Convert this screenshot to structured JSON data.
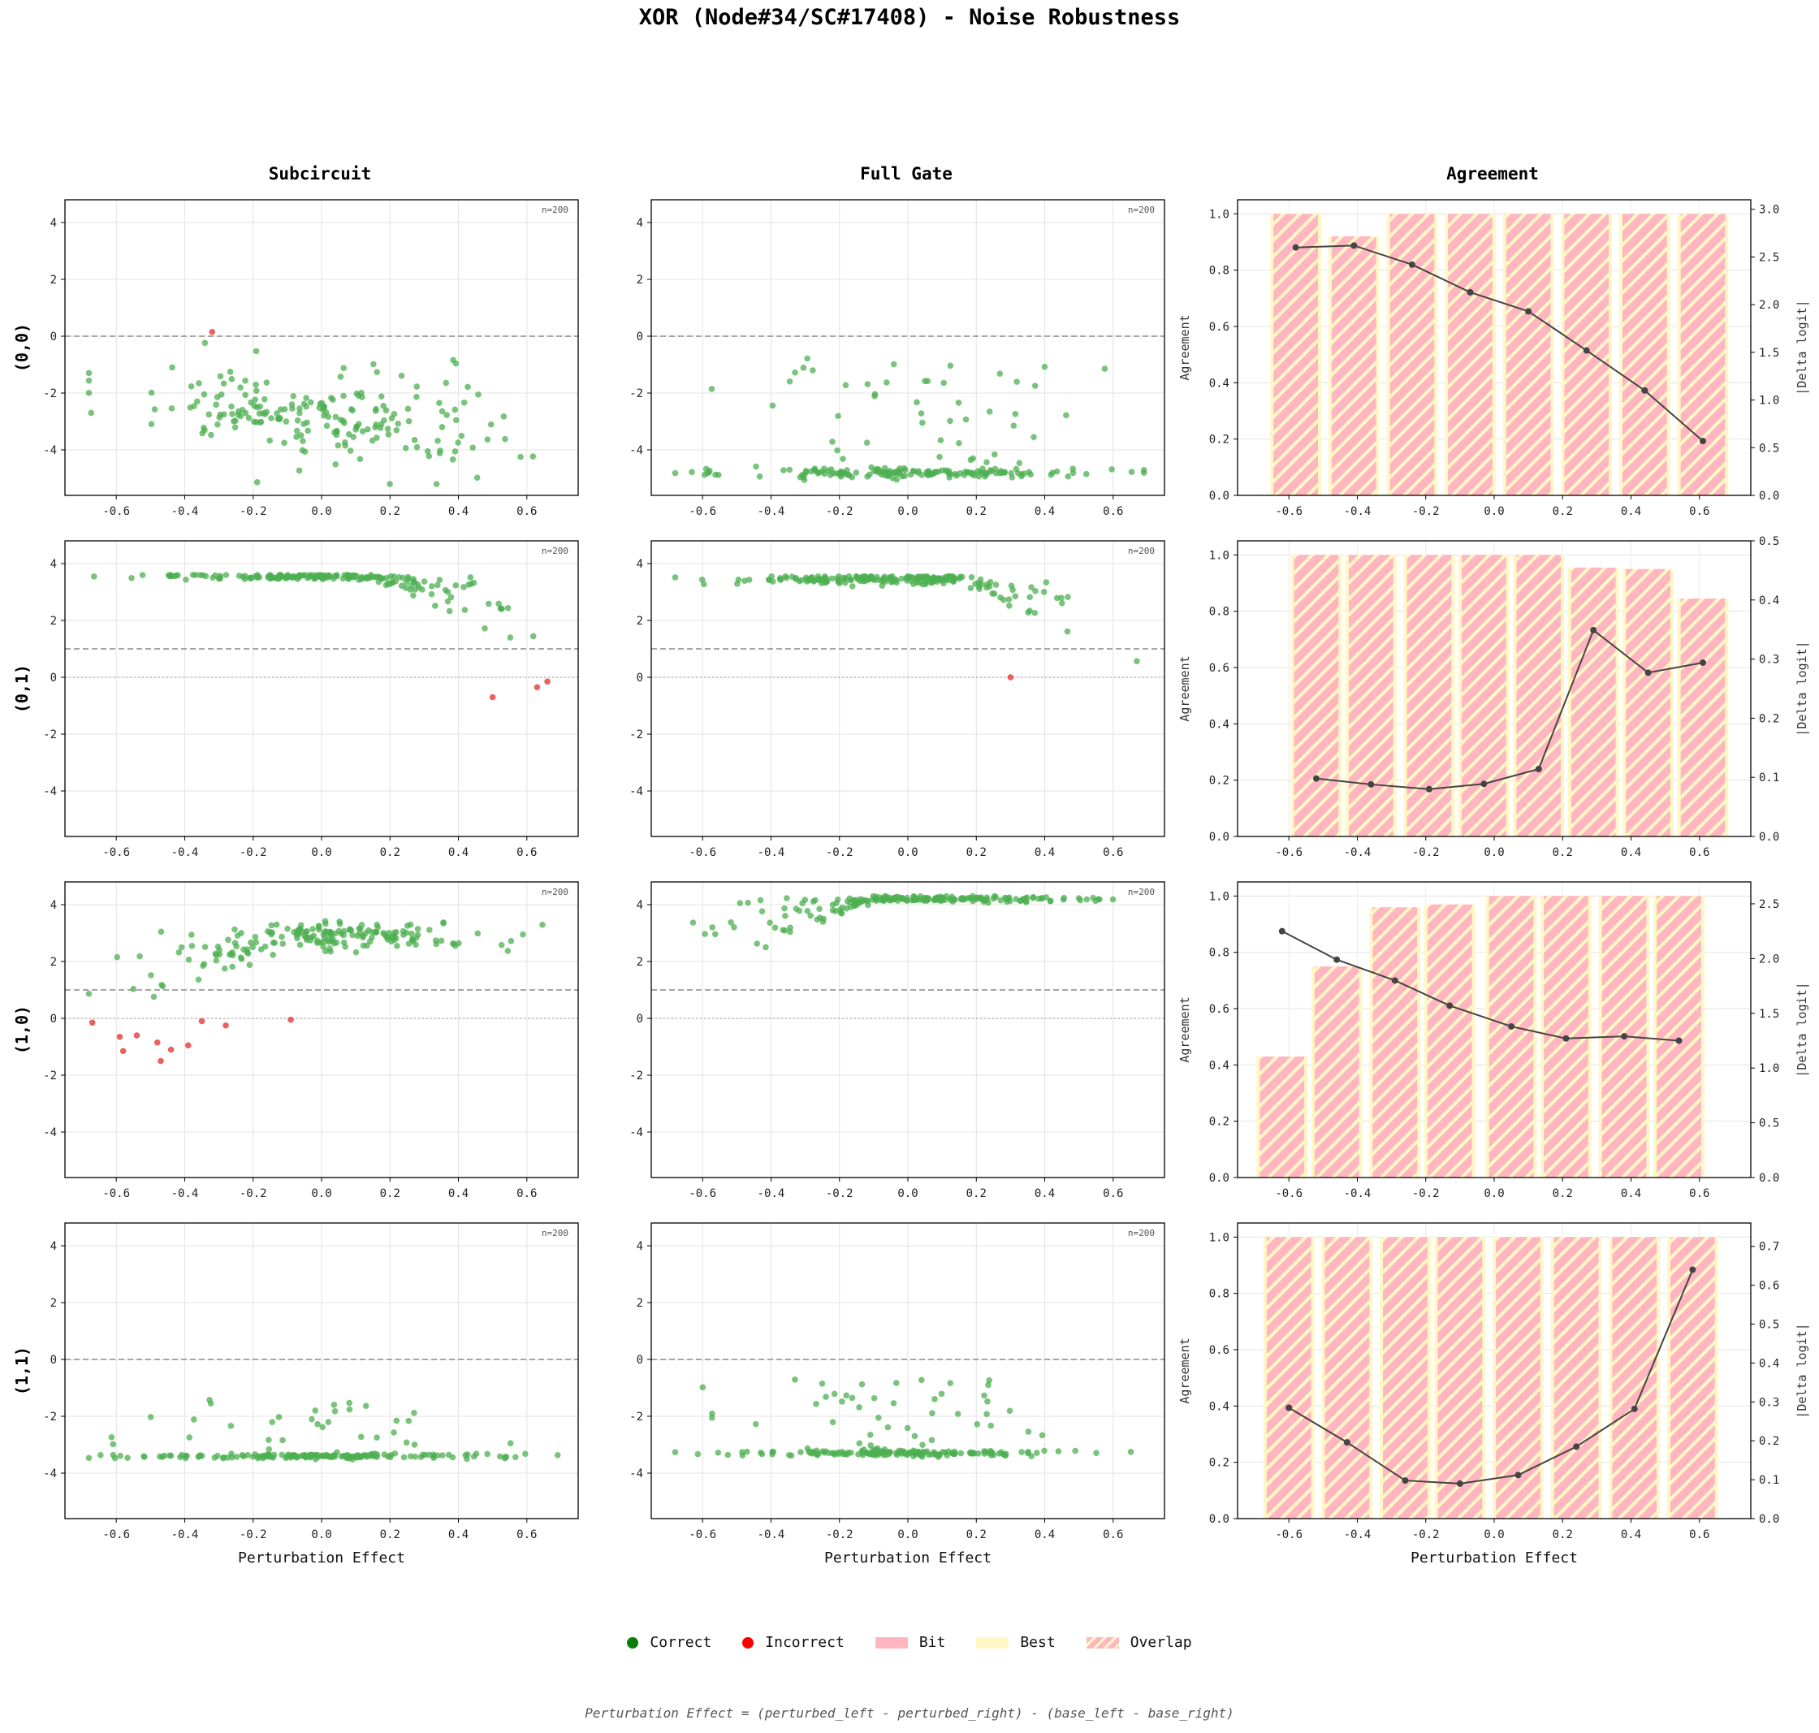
{
  "title": "XOR (Node#34/SC#17408) - Noise Robustness",
  "column_titles": [
    "Subcircuit",
    "Full Gate",
    "Agreement"
  ],
  "row_labels": [
    "(0,0)",
    "(0,1)",
    "(1,0)",
    "(1,1)"
  ],
  "xlabel": "Perturbation Effect",
  "agreement_ylabel": "Agreement",
  "delta_ylabel": "|Delta logit|",
  "legend": {
    "correct": "Correct",
    "incorrect": "Incorrect",
    "bit": "Bit",
    "best": "Best",
    "overlap": "Overlap"
  },
  "footnote": "Perturbation Effect = (perturbed_left - perturbed_right) - (base_left - base_right)",
  "colors": {
    "correct": "#4caf50",
    "incorrect": "#e53935",
    "bit": "#ffb6c1",
    "best": "#fff8c6",
    "line": "#444444",
    "legend_correct": "#0a7d0a",
    "legend_incorrect": "#ff0000"
  },
  "chart_data": {
    "type": "scatter",
    "scatter_xlim": [
      -0.75,
      0.75
    ],
    "scatter_ylim": [
      -5.6,
      4.8
    ],
    "scatter_xticks": [
      -0.6,
      -0.4,
      -0.2,
      0.0,
      0.2,
      0.4,
      0.6
    ],
    "scatter_yticks": [
      4,
      2,
      0,
      -2,
      -4
    ],
    "scatter_n_label": "n=200",
    "agreement_ylim": [
      0,
      1.05
    ],
    "agreement_yticks": [
      0.0,
      0.2,
      0.4,
      0.6,
      0.8,
      1.0
    ],
    "rows": [
      {
        "label": "(0,0)",
        "scatter_reference_lines": [
          0
        ],
        "subcircuit": {
          "n": 200,
          "center": -2.8,
          "spread": 0.8,
          "trend": -2.0,
          "floor": null,
          "ceil": null,
          "sat_frac": 0.0,
          "incorrect": [
            [
              -0.32,
              0.15
            ]
          ]
        },
        "full_gate": {
          "n": 200,
          "center": -4.8,
          "spread": 0.08,
          "trend": 0.0,
          "floor": null,
          "ceil": null,
          "sat_frac": 0.0,
          "outlier_frac": 0.3,
          "outlier_range": [
            -5.1,
            -0.6
          ],
          "incorrect": []
        },
        "agreement": {
          "x": [
            -0.58,
            -0.41,
            -0.24,
            -0.07,
            0.1,
            0.27,
            0.44,
            0.61
          ],
          "bar_width": 0.13,
          "values": [
            1.0,
            0.92,
            1.0,
            1.0,
            1.0,
            1.0,
            1.0,
            1.0
          ],
          "delta_logit": [
            2.6,
            2.62,
            2.42,
            2.13,
            1.93,
            1.52,
            1.1,
            0.57
          ],
          "delta_ylim": [
            0,
            3.1
          ],
          "delta_yticks": [
            0.0,
            0.5,
            1.0,
            1.5,
            2.0,
            2.5,
            3.0
          ]
        }
      },
      {
        "label": "(0,1)",
        "scatter_reference_lines": [
          1,
          0
        ],
        "subcircuit": {
          "n": 200,
          "center": 3.55,
          "spread": 0.05,
          "trend": 0.0,
          "floor": null,
          "ceil": 3.6,
          "sat_frac": 0.0,
          "tail": true,
          "incorrect": [
            [
              0.5,
              -0.7
            ],
            [
              0.63,
              -0.35
            ],
            [
              0.66,
              -0.15
            ]
          ]
        },
        "full_gate": {
          "n": 200,
          "center": 3.45,
          "spread": 0.08,
          "trend": 0.0,
          "floor": null,
          "ceil": 3.55,
          "sat_frac": 0.0,
          "tail": true,
          "incorrect": [
            [
              0.3,
              0.0
            ]
          ]
        },
        "agreement": {
          "x": [
            -0.52,
            -0.36,
            -0.19,
            -0.03,
            0.13,
            0.29,
            0.45,
            0.61
          ],
          "bar_width": 0.13,
          "values": [
            1.0,
            1.0,
            1.0,
            1.0,
            1.0,
            0.955,
            0.95,
            0.845
          ],
          "delta_logit": [
            0.098,
            0.088,
            0.08,
            0.089,
            0.114,
            0.349,
            0.277,
            0.294
          ],
          "delta_ylim": [
            0,
            0.5
          ],
          "delta_yticks": [
            0.0,
            0.1,
            0.2,
            0.3,
            0.4,
            0.5
          ]
        }
      },
      {
        "label": "(1,0)",
        "scatter_reference_lines": [
          1,
          0
        ],
        "subcircuit": {
          "n": 200,
          "center": 2.9,
          "spread": 0.25,
          "trend": 0.0,
          "floor": null,
          "ceil": null,
          "sat_frac": 0.0,
          "rise": true,
          "incorrect": [
            [
              -0.67,
              -0.15
            ],
            [
              -0.59,
              -0.65
            ],
            [
              -0.58,
              -1.15
            ],
            [
              -0.54,
              -0.6
            ],
            [
              -0.48,
              -0.85
            ],
            [
              -0.47,
              -1.5
            ],
            [
              -0.44,
              -1.1
            ],
            [
              -0.39,
              -0.95
            ],
            [
              -0.35,
              -0.1
            ],
            [
              -0.28,
              -0.25
            ],
            [
              -0.09,
              -0.05
            ]
          ]
        },
        "full_gate": {
          "n": 200,
          "center": 4.2,
          "spread": 0.05,
          "trend": 0.0,
          "floor": null,
          "ceil": 4.3,
          "sat_frac": 0.0,
          "rise": true,
          "incorrect": []
        },
        "agreement": {
          "x": [
            -0.62,
            -0.46,
            -0.29,
            -0.13,
            0.05,
            0.21,
            0.38,
            0.54
          ],
          "bar_width": 0.13,
          "values": [
            0.43,
            0.75,
            0.96,
            0.97,
            1.0,
            1.0,
            1.0,
            1.0
          ],
          "delta_logit": [
            2.25,
            1.99,
            1.8,
            1.57,
            1.38,
            1.27,
            1.29,
            1.25
          ],
          "delta_ylim": [
            0,
            2.7
          ],
          "delta_yticks": [
            0.0,
            0.5,
            1.0,
            1.5,
            2.0,
            2.5
          ]
        }
      },
      {
        "label": "(1,1)",
        "scatter_reference_lines": [
          0
        ],
        "subcircuit": {
          "n": 200,
          "center": -3.4,
          "spread": 0.04,
          "trend": 0.0,
          "floor": null,
          "ceil": null,
          "sat_frac": 0.0,
          "outlier_frac": 0.2,
          "outlier_range": [
            -3.4,
            -1.4
          ],
          "incorrect": []
        },
        "full_gate": {
          "n": 200,
          "center": -3.3,
          "spread": 0.05,
          "trend": 0.0,
          "floor": null,
          "ceil": null,
          "sat_frac": 0.0,
          "outlier_frac": 0.25,
          "outlier_range": [
            -3.3,
            -0.7
          ],
          "incorrect": []
        },
        "agreement": {
          "x": [
            -0.6,
            -0.43,
            -0.26,
            -0.1,
            0.07,
            0.24,
            0.41,
            0.58
          ],
          "bar_width": 0.13,
          "values": [
            1.0,
            1.0,
            1.0,
            1.0,
            1.0,
            1.0,
            1.0,
            1.0
          ],
          "delta_logit": [
            0.285,
            0.196,
            0.098,
            0.09,
            0.112,
            0.185,
            0.282,
            0.64
          ],
          "delta_ylim": [
            0,
            0.76
          ],
          "delta_yticks": [
            0.0,
            0.1,
            0.2,
            0.3,
            0.4,
            0.5,
            0.6,
            0.7
          ]
        }
      }
    ]
  }
}
